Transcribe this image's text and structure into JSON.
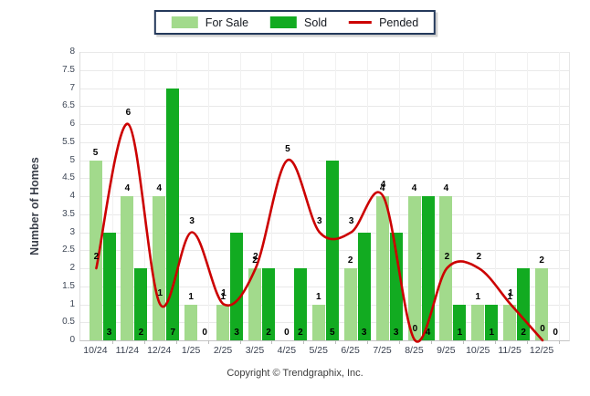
{
  "legend": {
    "items": [
      {
        "label": "For Sale"
      },
      {
        "label": "Sold"
      },
      {
        "label": "Pended"
      }
    ]
  },
  "ylabel": "Number of Homes",
  "footer": {
    "copyright": "Copyright © Trendgraphix, Inc."
  },
  "chart_data": {
    "type": "bar+line",
    "categories": [
      "10/24",
      "11/24",
      "12/24",
      "1/25",
      "2/25",
      "3/25",
      "4/25",
      "5/25",
      "6/25",
      "7/25",
      "8/25",
      "9/25",
      "10/25",
      "11/25",
      "12/25"
    ],
    "series": [
      {
        "name": "For Sale",
        "type": "bar",
        "color": "#A2DA8C",
        "values": [
          5,
          4,
          4,
          1,
          1,
          2,
          0,
          1,
          2,
          4,
          4,
          4,
          1,
          1,
          2
        ]
      },
      {
        "name": "Sold",
        "type": "bar",
        "color": "#12AB21",
        "values": [
          3,
          2,
          7,
          0,
          3,
          2,
          2,
          5,
          3,
          3,
          4,
          1,
          1,
          2,
          0
        ]
      },
      {
        "name": "Pended",
        "type": "line",
        "color": "#CC0000",
        "values": [
          2,
          6,
          1,
          3,
          1,
          2,
          5,
          3,
          3,
          4,
          0,
          2,
          2,
          1,
          0
        ]
      }
    ],
    "title": "",
    "xlabel": "",
    "ylabel": "Number of Homes",
    "ylim": [
      0,
      8
    ],
    "ytick_step": 0.5,
    "grid": true,
    "legend_position": "top-center",
    "data_labels": true
  }
}
